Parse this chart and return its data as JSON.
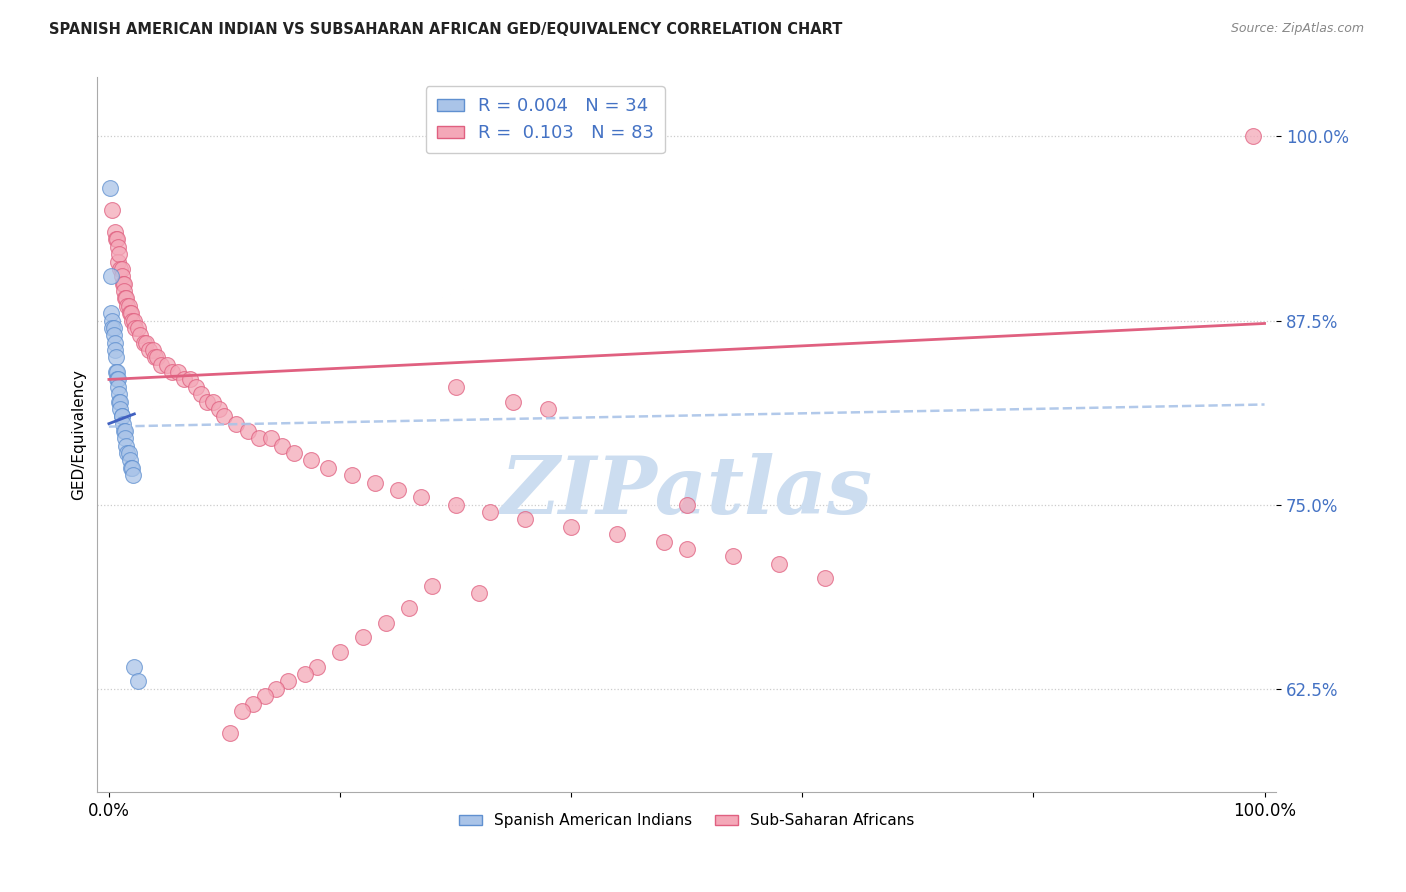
{
  "title": "SPANISH AMERICAN INDIAN VS SUBSAHARAN AFRICAN GED/EQUIVALENCY CORRELATION CHART",
  "source": "Source: ZipAtlas.com",
  "ylabel": "GED/Equivalency",
  "ytick_labels": [
    "62.5%",
    "75.0%",
    "87.5%",
    "100.0%"
  ],
  "ytick_values": [
    0.625,
    0.75,
    0.875,
    1.0
  ],
  "legend_blue_label": "Spanish American Indians",
  "legend_pink_label": "Sub-Saharan Africans",
  "R_blue": 0.004,
  "N_blue": 34,
  "R_pink": 0.103,
  "N_pink": 83,
  "blue_color": "#aac4e8",
  "pink_color": "#f4a8b8",
  "blue_edge": "#6090d0",
  "pink_edge": "#e06080",
  "blue_line_color": "#4060c0",
  "pink_line_color": "#e06080",
  "watermark_color": "#ccddf0",
  "background_color": "#ffffff",
  "xmin": -0.01,
  "xmax": 1.01,
  "ymin": 0.555,
  "ymax": 1.04,
  "blue_scatter_x": [
    0.001,
    0.002,
    0.002,
    0.003,
    0.003,
    0.004,
    0.004,
    0.005,
    0.005,
    0.006,
    0.006,
    0.007,
    0.007,
    0.008,
    0.008,
    0.009,
    0.009,
    0.01,
    0.01,
    0.011,
    0.011,
    0.012,
    0.013,
    0.014,
    0.014,
    0.015,
    0.016,
    0.017,
    0.018,
    0.019,
    0.02,
    0.021,
    0.022,
    0.025
  ],
  "blue_scatter_y": [
    0.965,
    0.905,
    0.88,
    0.875,
    0.87,
    0.87,
    0.865,
    0.86,
    0.855,
    0.85,
    0.84,
    0.84,
    0.835,
    0.835,
    0.83,
    0.825,
    0.82,
    0.82,
    0.815,
    0.81,
    0.81,
    0.805,
    0.8,
    0.8,
    0.795,
    0.79,
    0.785,
    0.785,
    0.78,
    0.775,
    0.775,
    0.77,
    0.64,
    0.63
  ],
  "pink_scatter_x": [
    0.003,
    0.005,
    0.006,
    0.007,
    0.008,
    0.008,
    0.009,
    0.01,
    0.011,
    0.011,
    0.012,
    0.013,
    0.013,
    0.014,
    0.015,
    0.016,
    0.017,
    0.018,
    0.019,
    0.02,
    0.022,
    0.023,
    0.025,
    0.027,
    0.03,
    0.032,
    0.035,
    0.038,
    0.04,
    0.042,
    0.045,
    0.05,
    0.055,
    0.06,
    0.065,
    0.07,
    0.075,
    0.08,
    0.085,
    0.09,
    0.095,
    0.1,
    0.11,
    0.12,
    0.13,
    0.14,
    0.15,
    0.16,
    0.175,
    0.19,
    0.21,
    0.23,
    0.25,
    0.27,
    0.3,
    0.33,
    0.36,
    0.4,
    0.44,
    0.48,
    0.5,
    0.54,
    0.58,
    0.62,
    0.3,
    0.35,
    0.38,
    0.28,
    0.32,
    0.26,
    0.24,
    0.22,
    0.2,
    0.18,
    0.17,
    0.155,
    0.145,
    0.135,
    0.125,
    0.115,
    0.105,
    0.5,
    0.99
  ],
  "pink_scatter_y": [
    0.95,
    0.935,
    0.93,
    0.93,
    0.925,
    0.915,
    0.92,
    0.91,
    0.91,
    0.905,
    0.9,
    0.9,
    0.895,
    0.89,
    0.89,
    0.885,
    0.885,
    0.88,
    0.88,
    0.875,
    0.875,
    0.87,
    0.87,
    0.865,
    0.86,
    0.86,
    0.855,
    0.855,
    0.85,
    0.85,
    0.845,
    0.845,
    0.84,
    0.84,
    0.835,
    0.835,
    0.83,
    0.825,
    0.82,
    0.82,
    0.815,
    0.81,
    0.805,
    0.8,
    0.795,
    0.795,
    0.79,
    0.785,
    0.78,
    0.775,
    0.77,
    0.765,
    0.76,
    0.755,
    0.75,
    0.745,
    0.74,
    0.735,
    0.73,
    0.725,
    0.72,
    0.715,
    0.71,
    0.7,
    0.83,
    0.82,
    0.815,
    0.695,
    0.69,
    0.68,
    0.67,
    0.66,
    0.65,
    0.64,
    0.635,
    0.63,
    0.625,
    0.62,
    0.615,
    0.61,
    0.595,
    0.75,
    1.0
  ]
}
